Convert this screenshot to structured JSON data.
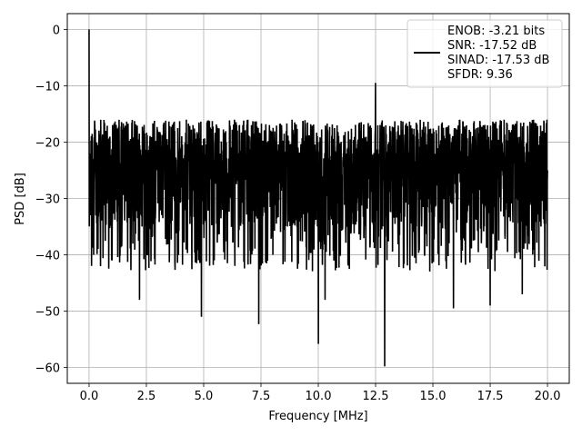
{
  "chart_data": {
    "type": "line",
    "xlabel": "Frequency [MHz]",
    "ylabel": "PSD [dB]",
    "xlim": [
      -0.95,
      20.95
    ],
    "ylim": [
      -62.8,
      2.8
    ],
    "x_ticks": [
      0.0,
      2.5,
      5.0,
      7.5,
      10.0,
      12.5,
      15.0,
      17.5,
      20.0
    ],
    "x_tick_labels": [
      "0.0",
      "2.5",
      "5.0",
      "7.5",
      "10.0",
      "12.5",
      "15.0",
      "17.5",
      "20.0"
    ],
    "y_ticks": [
      0,
      -10,
      -20,
      -30,
      -40,
      -50,
      -60
    ],
    "y_tick_labels": [
      "0",
      "−10",
      "−20",
      "−30",
      "−40",
      "−50",
      "−60"
    ],
    "grid": true,
    "legend_position": "top-right",
    "series": [
      {
        "name": "ENOB: -3.21 bits\nSNR: -17.52 dB\nSINAD: -17.53 dB\nSFDR: 9.36",
        "color": "#000000",
        "style": "noise-floor",
        "x_range": [
          0.0,
          20.0
        ],
        "dc_peak": 0.0,
        "typical_upper": -12,
        "typical_lower": -35,
        "x": [
          0.0,
          0.05,
          0.2,
          0.5,
          1.0,
          2.2,
          4.9,
          7.4,
          10.0,
          10.3,
          12.5,
          12.9,
          15.9,
          17.5,
          18.9,
          20.0
        ],
        "y": [
          0.0,
          -22.0,
          -40.0,
          -42.0,
          -41.0,
          -48.0,
          -51.0,
          -52.3,
          -55.8,
          -48.0,
          -9.5,
          -59.8,
          -49.5,
          -49.0,
          -47.0,
          -25.0
        ]
      }
    ]
  },
  "legend": {
    "lines": [
      "ENOB: -3.21 bits",
      "SNR: -17.52 dB",
      "SINAD: -17.53 dB",
      "SFDR: 9.36"
    ]
  },
  "colors": {
    "line": "#000000",
    "grid": "#b0b0b0",
    "axes": "#000000",
    "background": "#ffffff"
  }
}
